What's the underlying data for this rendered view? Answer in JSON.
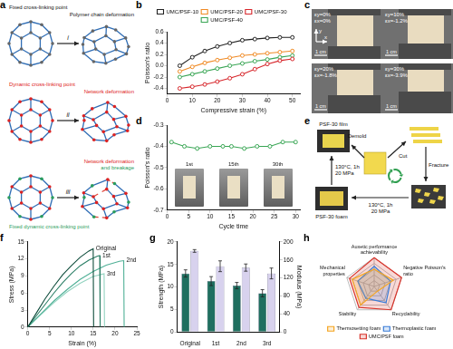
{
  "chart_data": [
    {
      "panel": "b",
      "type": "line",
      "x_label": "Compressive strain (%)",
      "y_label": "Poisson's ratio",
      "x": [
        5,
        10,
        15,
        20,
        25,
        30,
        35,
        40,
        45,
        50
      ],
      "series": [
        {
          "name": "UMC/PSF-10",
          "color": "#222222",
          "values": [
            0.0,
            0.15,
            0.26,
            0.34,
            0.4,
            0.45,
            0.47,
            0.49,
            0.5,
            0.5
          ]
        },
        {
          "name": "UMC/PSF-20",
          "color": "#f08a24",
          "values": [
            -0.1,
            -0.02,
            0.05,
            0.1,
            0.14,
            0.18,
            0.2,
            0.22,
            0.24,
            0.26
          ]
        },
        {
          "name": "UMC/PSF-30",
          "color": "#d7262b",
          "values": [
            -0.4,
            -0.37,
            -0.33,
            -0.28,
            -0.22,
            -0.15,
            -0.06,
            0.03,
            0.09,
            0.12
          ]
        },
        {
          "name": "UMC/PSF-40",
          "color": "#3aa655",
          "values": [
            -0.2,
            -0.15,
            -0.1,
            -0.05,
            0.0,
            0.04,
            0.08,
            0.11,
            0.15,
            0.18
          ]
        }
      ],
      "xlim": [
        0,
        53
      ],
      "xticks": [
        0,
        10,
        20,
        30,
        40,
        50
      ],
      "ylim": [
        -0.5,
        0.6
      ],
      "yticks": [
        -0.4,
        -0.2,
        {
          "value": 0,
          "label": "0.0"
        },
        0.2,
        0.4,
        0.6
      ],
      "legend": "top",
      "marker": "circle",
      "grid": false
    },
    {
      "panel": "d",
      "type": "line",
      "x_label": "Cycle time",
      "y_label": "Poisson's ratio",
      "x": [
        1,
        4,
        7,
        10,
        13,
        15,
        18,
        21,
        24,
        27,
        30
      ],
      "values": [
        -0.38,
        -0.4,
        -0.41,
        -0.4,
        -0.4,
        -0.4,
        -0.41,
        -0.4,
        -0.4,
        -0.38,
        -0.38
      ],
      "color": "#3aa655",
      "xlim": [
        0,
        31
      ],
      "xticks": [
        0,
        5,
        10,
        15,
        20,
        25,
        30
      ],
      "ylim": [
        -0.7,
        -0.3
      ],
      "yticks": [
        -0.7,
        -0.6,
        -0.5,
        -0.4,
        -0.3
      ],
      "marker": "circle",
      "grid": false
    },
    {
      "panel": "f",
      "type": "line",
      "x_label": "Strain (%)",
      "y_label": "Stress (MPa)",
      "series": [
        {
          "name": "Original",
          "color": "#0f4d3c",
          "x": [
            0,
            2,
            4,
            6,
            8,
            10,
            12,
            14,
            15,
            15.1
          ],
          "values": [
            0,
            2.5,
            5,
            7.2,
            9.2,
            10.8,
            12.3,
            13.4,
            13.8,
            0
          ]
        },
        {
          "name": "1st",
          "color": "#2b7f66",
          "x": [
            0,
            2,
            4,
            6,
            8,
            10,
            12,
            14,
            16,
            16.5,
            16.6
          ],
          "values": [
            0,
            2,
            4,
            6,
            7.8,
            9.4,
            10.8,
            11.8,
            12.5,
            12.6,
            0
          ]
        },
        {
          "name": "2nd",
          "color": "#4fb096",
          "x": [
            0,
            3,
            6,
            9,
            12,
            15,
            18,
            21,
            22,
            22.1
          ],
          "values": [
            0,
            2.3,
            4.6,
            6.6,
            8.4,
            9.8,
            10.9,
            11.6,
            11.7,
            0
          ]
        },
        {
          "name": "3rd",
          "color": "#93d3c0",
          "x": [
            0,
            3,
            6,
            9,
            12,
            15,
            17.5,
            17.6
          ],
          "values": [
            0,
            2.2,
            4.3,
            6.2,
            7.7,
            8.9,
            9.4,
            0
          ]
        }
      ],
      "xlim": [
        0,
        25
      ],
      "xticks": [
        0,
        5,
        10,
        15,
        20,
        25
      ],
      "ylim": [
        0,
        15
      ],
      "yticks": [
        0,
        3,
        6,
        9,
        12,
        15
      ],
      "grid": false
    },
    {
      "panel": "g",
      "type": "bar",
      "categories": [
        "Original",
        "1st",
        "2nd",
        "3rd"
      ],
      "y_label": "Strength (MPa)",
      "y2_label": "Modulus (MPa)",
      "series": [
        {
          "color": "#1f6f5f",
          "values": [
            13,
            11.3,
            10.3,
            8.6
          ],
          "errors": [
            0.8,
            1.0,
            0.7,
            0.8
          ]
        },
        {
          "color": "#d8d2ee",
          "axis": "y2",
          "values": [
            180,
            146,
            143,
            130
          ],
          "errors": [
            3,
            12,
            8,
            12
          ]
        }
      ],
      "ylim": [
        0,
        20
      ],
      "yticks": [
        0,
        5,
        10,
        15,
        20
      ],
      "y2lim": [
        0,
        200
      ],
      "y2ticks": [
        0,
        40,
        80,
        120,
        160,
        200
      ],
      "grid": false
    },
    {
      "panel": "h",
      "type": "radar",
      "categories": [
        "Auxetic performance achievability",
        "Negative Poisson's ratio",
        "Recyclability",
        "Stability",
        "Mechanical properties"
      ],
      "series": [
        {
          "name": "Thermosetting foam",
          "color": "#f5a623",
          "values": [
            3,
            3.5,
            1,
            4,
            4
          ]
        },
        {
          "name": "Thermoplastic foam",
          "color": "#3b7dd8",
          "values": [
            3.5,
            3,
            3.5,
            2.5,
            3
          ]
        },
        {
          "name": "UMC/PSF foam",
          "color": "#d9342b",
          "values": [
            5,
            5,
            5,
            4.5,
            4.5
          ]
        }
      ],
      "ylim": [
        0,
        5
      ],
      "yticks": [
        0,
        1,
        2,
        3,
        4,
        5
      ],
      "tick_labels": false,
      "legend": "bottom",
      "grid": true
    }
  ],
  "diagrams": {
    "a": {
      "panel": "a",
      "rows": [
        {
          "step": "i",
          "left": [
            "Fixed cross-linking point"
          ],
          "right": [
            "Polymer chain deformation"
          ]
        },
        {
          "step": "ii",
          "left": [
            "Dynamic cross-linking point"
          ],
          "right": [
            "Network deformation"
          ]
        },
        {
          "step": "iii",
          "left": [
            "Fixed dynamic cross-linking point"
          ],
          "right": [
            "Network deformation",
            "and breakage"
          ]
        }
      ]
    },
    "c": {
      "panel": "c",
      "axes": [
        "y",
        "x"
      ],
      "scale": "1 cm",
      "photos": [
        [
          "εy=0%",
          "εx=0%"
        ],
        [
          "εy=10%",
          "εx=-1.2%"
        ],
        [
          "εy=20%",
          "εx=-1.8%"
        ],
        [
          "εy=30%",
          "εx=-3.9%"
        ]
      ]
    },
    "d_inset": {
      "labels": [
        "1st",
        "15th",
        "30th"
      ]
    },
    "e": {
      "panel": "e",
      "film": "PSF-30 film",
      "foam": "PSF-30 foam",
      "demold": "Demold",
      "cut": "Cut",
      "fracture": "Fracture",
      "press_up": [
        "130°C, 1h",
        "20 MPa"
      ],
      "press_bottom": [
        "130°C, 1h",
        "20 MPa"
      ]
    }
  }
}
